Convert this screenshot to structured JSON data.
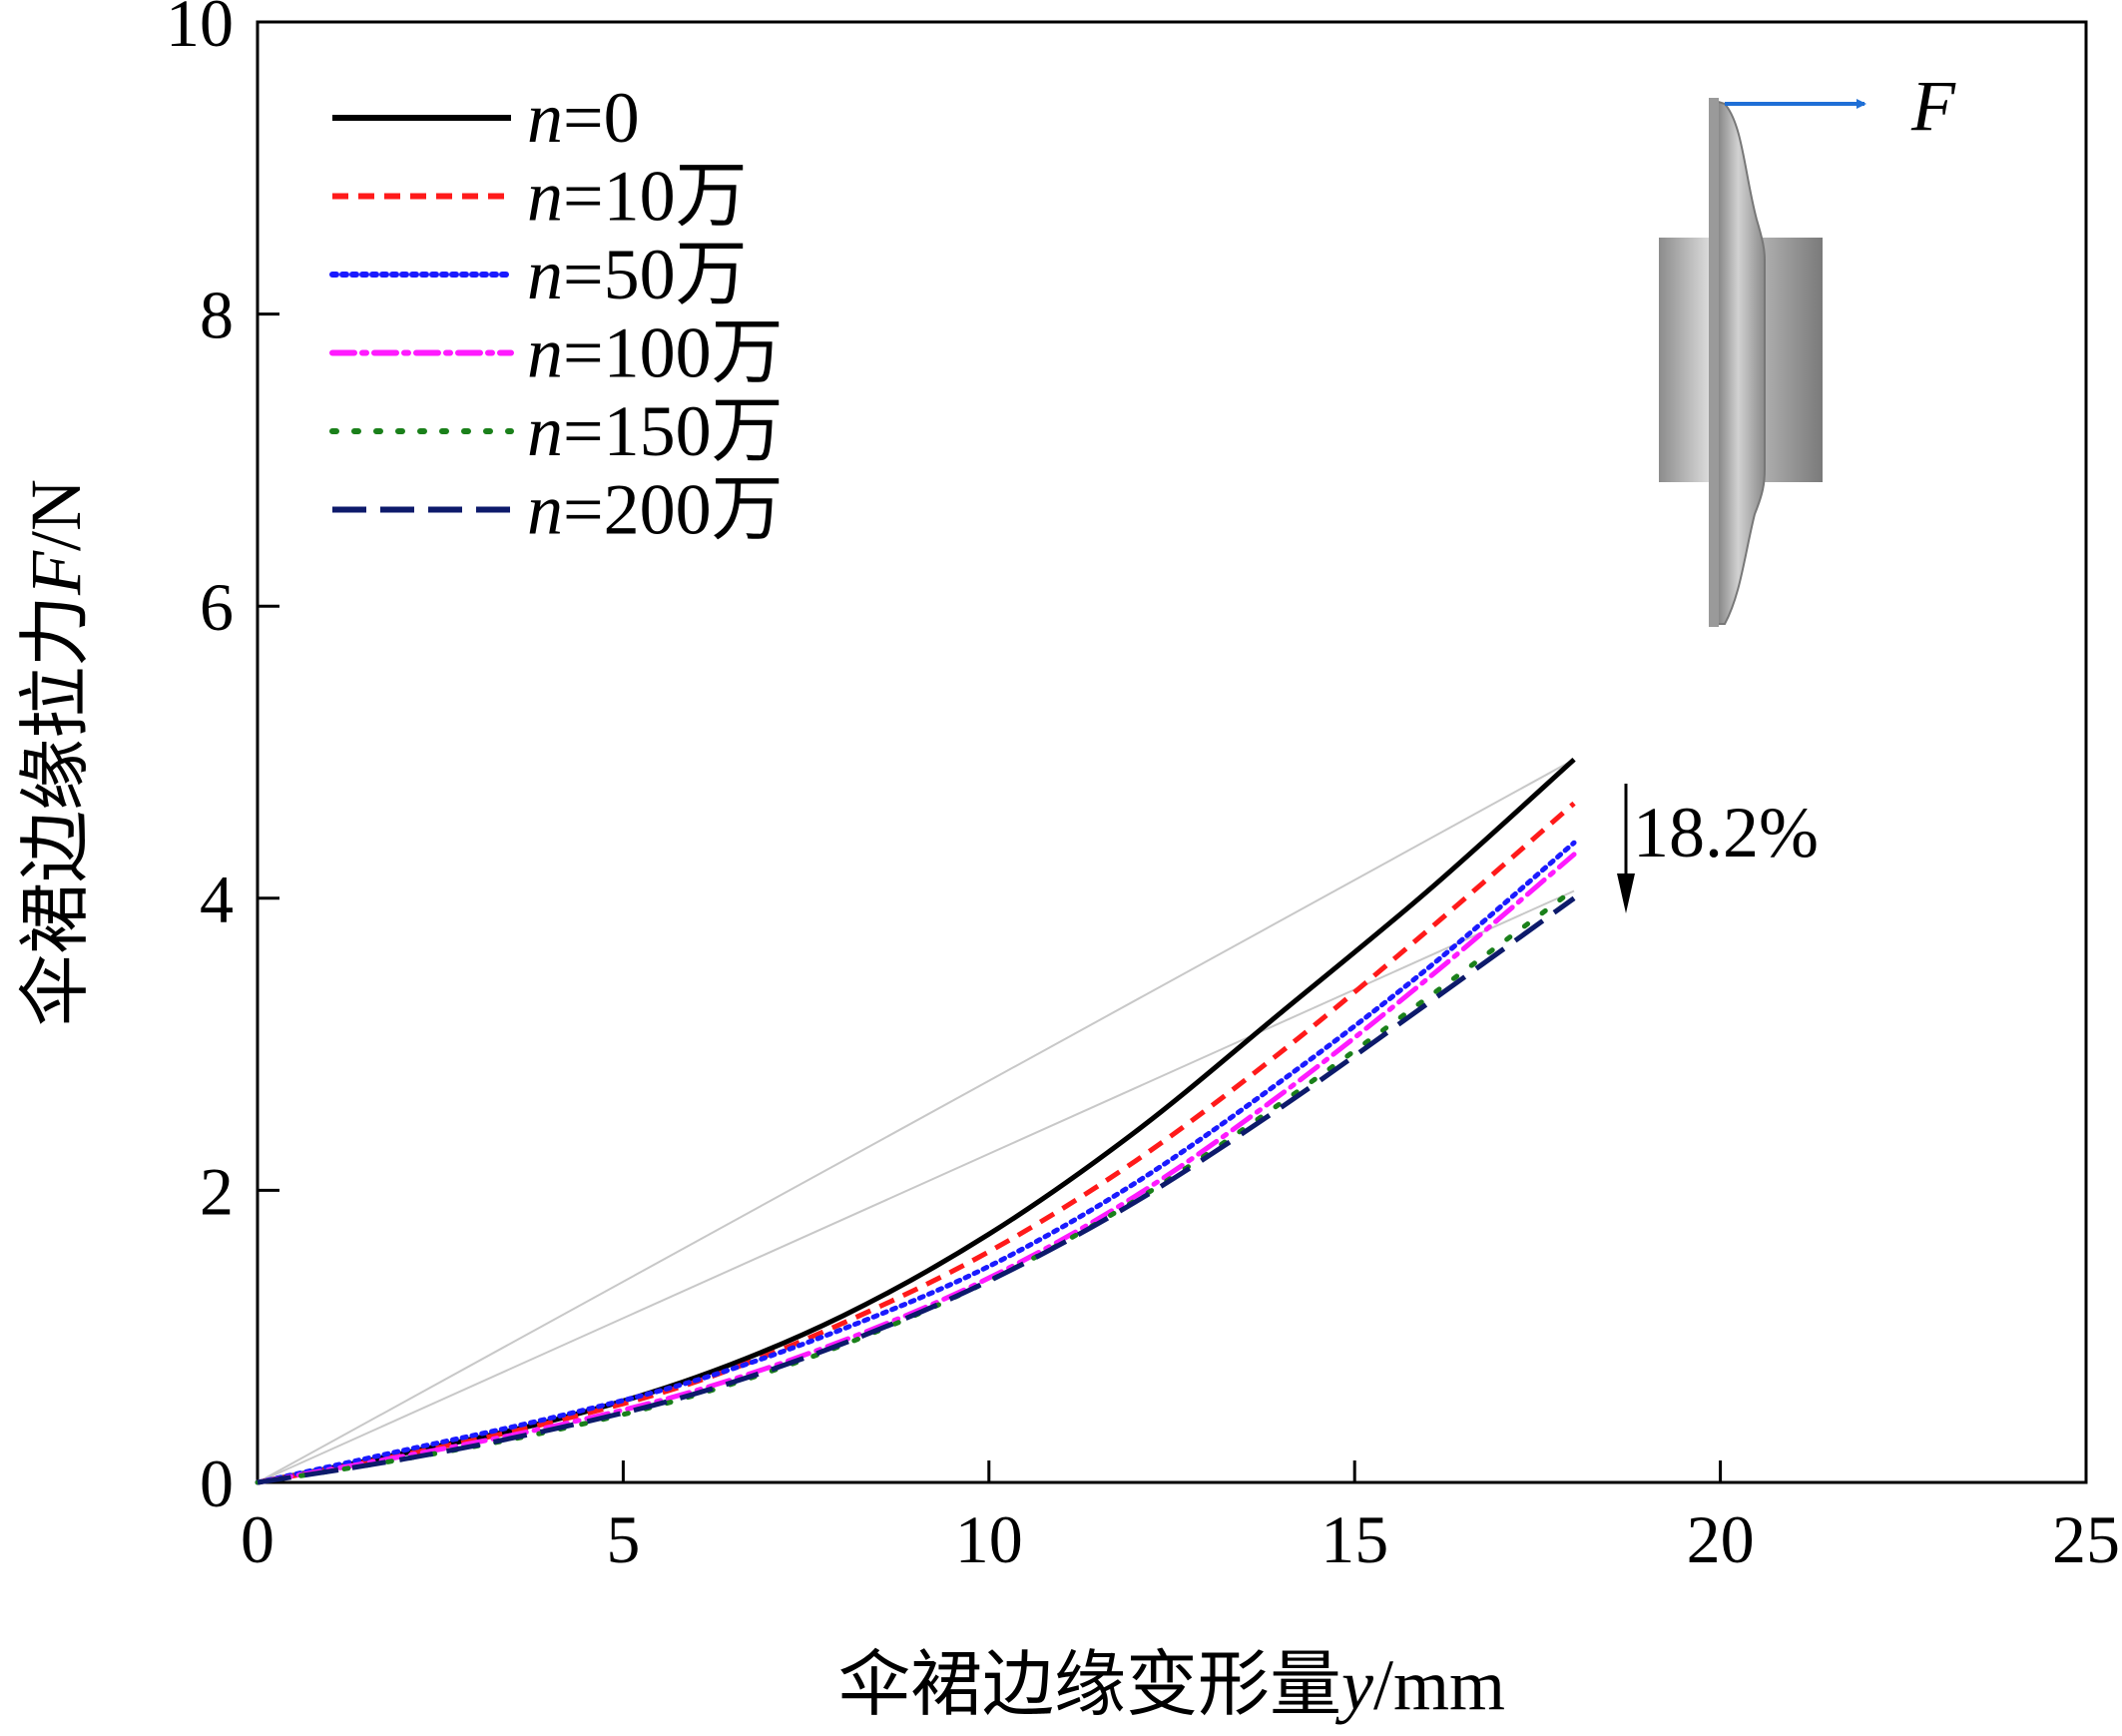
{
  "chart_data": {
    "type": "line",
    "xlabel": "伞裙边缘变形量y/mm",
    "ylabel": "伞裙边缘拉力F/N",
    "xlim": [
      0,
      25
    ],
    "ylim": [
      0,
      10
    ],
    "xticks": [
      "0",
      "5",
      "10",
      "15",
      "20",
      "25"
    ],
    "yticks": [
      "0",
      "2",
      "4",
      "6",
      "8",
      "10"
    ],
    "grid": false,
    "legend_position": "top-left",
    "series": [
      {
        "name": "n=0",
        "style": "solid",
        "color": "#000000",
        "x": [
          0,
          2,
          4,
          6,
          8,
          10,
          12,
          14,
          16,
          18
        ],
        "y": [
          0,
          0.2,
          0.42,
          0.72,
          1.14,
          1.7,
          2.4,
          3.22,
          4.05,
          4.95
        ]
      },
      {
        "name": "n=10万",
        "style": "dash",
        "color": "#ff1a1a",
        "x": [
          0,
          2,
          4,
          6,
          8,
          10,
          12,
          14,
          16,
          18
        ],
        "y": [
          0,
          0.19,
          0.41,
          0.69,
          1.09,
          1.58,
          2.2,
          2.95,
          3.78,
          4.65
        ]
      },
      {
        "name": "n=50万",
        "style": "dot",
        "color": "#1a1aff",
        "x": [
          0,
          2,
          4,
          6,
          8,
          10,
          12,
          14,
          16,
          18
        ],
        "y": [
          0,
          0.22,
          0.44,
          0.7,
          1.05,
          1.48,
          2.05,
          2.75,
          3.52,
          4.38
        ]
      },
      {
        "name": "n=100万",
        "style": "dashdot",
        "color": "#ff1aff",
        "x": [
          0,
          2,
          4,
          6,
          8,
          10,
          12,
          14,
          16,
          18
        ],
        "y": [
          0,
          0.18,
          0.38,
          0.63,
          0.97,
          1.4,
          1.96,
          2.66,
          3.45,
          4.3
        ]
      },
      {
        "name": "n=150万",
        "style": "sparse-dot",
        "color": "#1a801a",
        "x": [
          0,
          2,
          4,
          6,
          8,
          10,
          12,
          14,
          16,
          18
        ],
        "y": [
          0,
          0.16,
          0.35,
          0.6,
          0.94,
          1.38,
          1.93,
          2.6,
          3.32,
          4.06
        ]
      },
      {
        "name": "n=200万",
        "style": "longdash",
        "color": "#0d1a6b",
        "x": [
          0,
          2,
          4,
          6,
          8,
          10,
          12,
          14,
          16,
          18
        ],
        "y": [
          0,
          0.16,
          0.36,
          0.61,
          0.95,
          1.38,
          1.92,
          2.57,
          3.28,
          4.0
        ]
      }
    ],
    "reference_lines": [
      {
        "x": [
          0,
          18
        ],
        "y": [
          0,
          4.95
        ],
        "color": "#c8c8c8"
      },
      {
        "x": [
          0,
          18
        ],
        "y": [
          0,
          4.05
        ],
        "color": "#c8c8c8"
      }
    ],
    "annotations": [
      {
        "text": "18.2%",
        "arrow": "down"
      }
    ],
    "inset": {
      "force_label": "F"
    }
  }
}
